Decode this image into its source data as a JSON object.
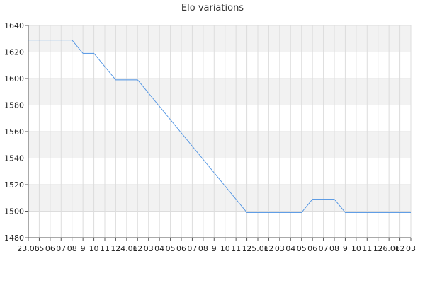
{
  "chart_data": {
    "type": "line",
    "title": "Elo variations",
    "xlabel": "",
    "ylabel": "",
    "ylim": [
      1480,
      1640
    ],
    "y_ticks": [
      1480,
      1500,
      1520,
      1540,
      1560,
      1580,
      1600,
      1620,
      1640
    ],
    "x_tick_labels": [
      "23.06",
      "05",
      "06",
      "07",
      "08",
      "9",
      "10",
      "11",
      "12",
      "24.06",
      "12",
      "03",
      "04",
      "05",
      "06",
      "07",
      "08",
      "9",
      "10",
      "11",
      "12",
      "25.06",
      "12",
      "03",
      "04",
      "05",
      "06",
      "07",
      "08",
      "9",
      "10",
      "11",
      "12",
      "26.06",
      "12",
      "03"
    ],
    "x": [
      0,
      1,
      2,
      3,
      4,
      5,
      6,
      7,
      8,
      9,
      10,
      11,
      12,
      13,
      14,
      15,
      16,
      17,
      18,
      19,
      20,
      21,
      22,
      23,
      24,
      25,
      26,
      27,
      28,
      29,
      30,
      31,
      32,
      33,
      34,
      35
    ],
    "series": [
      {
        "values": [
          1629,
          1629,
          1629,
          1629,
          1629,
          1619,
          1619,
          1609,
          1599,
          1599,
          1599,
          1589,
          1579,
          1569,
          1559,
          1549,
          1539,
          1529,
          1519,
          1509,
          1499,
          1499,
          1499,
          1499,
          1499,
          1499,
          1509,
          1509,
          1509,
          1499,
          1499,
          1499,
          1499,
          1499,
          1499,
          1499
        ],
        "color": "#4a90e2"
      }
    ],
    "grid": true,
    "band_color": "#f2f2f2",
    "grid_color": "#dddddd"
  }
}
